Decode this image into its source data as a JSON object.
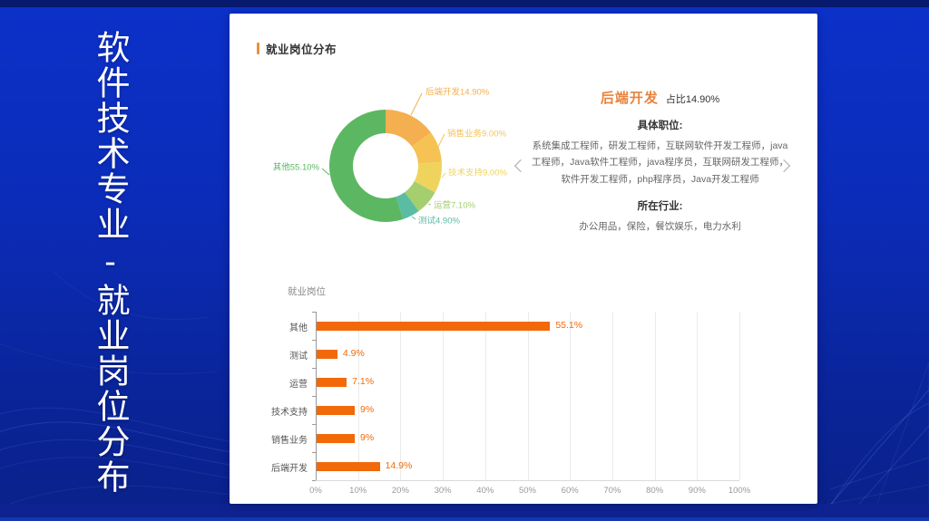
{
  "slide": {
    "vertical_title": "软件技术专业-就业岗位分布"
  },
  "panel": {
    "header": {
      "title": "就业岗位分布"
    },
    "detail": {
      "title": "后端开发",
      "share_label": "占比14.90%",
      "positions_heading": "具体职位:",
      "positions": "系统集成工程师，研发工程师，互联网软件开发工程师，java工程师，Java软件工程师，java程序员，互联网研发工程师，软件开发工程师，php程序员，Java开发工程师",
      "industries_heading": "所在行业:",
      "industries": "办公用品，保险，餐饮娱乐，电力水利",
      "prev_icon": "chevron-left-icon",
      "next_icon": "chevron-right-icon"
    }
  },
  "colors": {
    "accent_orange": "#e8913e",
    "detail_title_orange": "#e8833c",
    "bar_orange": "#f2690a",
    "slide_background_blue": "#0b2cb8",
    "panel_white": "#ffffff"
  },
  "chart_data": [
    {
      "type": "pie",
      "donut": true,
      "title": "",
      "legend_position": "none",
      "slices": [
        {
          "name": "后端开发",
          "value": 14.9,
          "label": "后端开发14.90%",
          "color": "#F4AF50"
        },
        {
          "name": "销售业务",
          "value": 9.0,
          "label": "销售业务9.00%",
          "color": "#F6C254"
        },
        {
          "name": "技术支持",
          "value": 9.0,
          "label": "技术支持9.00%",
          "color": "#EED45C"
        },
        {
          "name": "运营",
          "value": 7.1,
          "label": "运营7.10%",
          "color": "#A5CE6F"
        },
        {
          "name": "测试",
          "value": 4.9,
          "label": "测试4.90%",
          "color": "#5ABCA3"
        },
        {
          "name": "其他",
          "value": 55.1,
          "label": "其他55.10%",
          "color": "#5CB762"
        }
      ]
    },
    {
      "type": "bar",
      "orientation": "horizontal",
      "title": "就业岗位",
      "categories": [
        "其他",
        "测试",
        "运营",
        "技术支持",
        "销售业务",
        "后端开发"
      ],
      "values": [
        55.1,
        4.9,
        7.1,
        9,
        9,
        14.9
      ],
      "value_labels": [
        "55.1%",
        "4.9%",
        "7.1%",
        "9%",
        "9%",
        "14.9%"
      ],
      "bar_color": "#f2690a",
      "xlabel": "",
      "ylabel": "",
      "xlim": [
        0,
        100
      ],
      "x_ticks": [
        "0%",
        "10%",
        "20%",
        "30%",
        "40%",
        "50%",
        "60%",
        "70%",
        "80%",
        "90%",
        "100%"
      ],
      "grid": true
    }
  ]
}
